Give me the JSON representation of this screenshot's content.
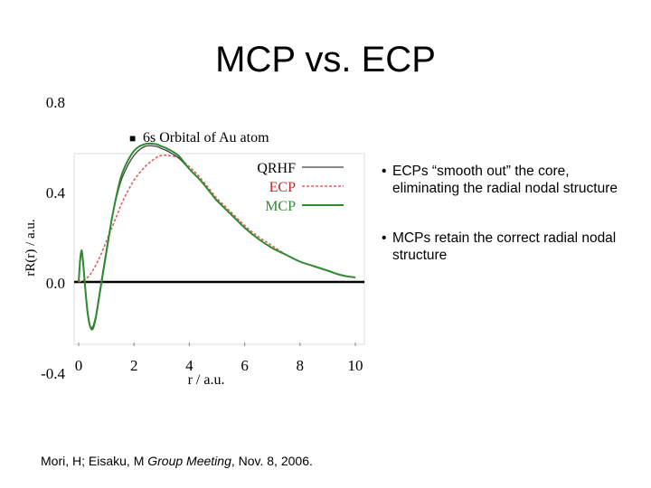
{
  "slide": {
    "title": "MCP vs. ECP"
  },
  "bullets": [
    {
      "mark": "•",
      "text": "ECPs “smooth out” the core, eliminating the radial nodal structure"
    },
    {
      "mark": "•",
      "text": "MCPs retain the correct radial nodal structure"
    }
  ],
  "footer": {
    "authors": "Mori, H; Eisaku, M ",
    "venue": "Group Meeting",
    "date": ", Nov. 8, 2006."
  },
  "chart_data": {
    "type": "line",
    "title": "6s Orbital of Au atom",
    "title_marker": "■",
    "xlabel": "r / a.u.",
    "ylabel": "rR(r) / a.u.",
    "xlim": [
      0,
      10
    ],
    "ylim": [
      -0.4,
      0.8
    ],
    "x_ticks": [
      "0",
      "2",
      "4",
      "6",
      "8",
      "10"
    ],
    "y_ticks": [
      "0.8",
      "0.4",
      "0.0",
      "-0.4"
    ],
    "colors": {
      "qrhf": "#404040",
      "ecp": "#e06060",
      "mcp": "#2e8b2e"
    },
    "series": [
      {
        "name": "QRHF",
        "style": "solid",
        "x": [
          0,
          0.05,
          0.1,
          0.15,
          0.2,
          0.3,
          0.4,
          0.5,
          0.6,
          0.7,
          0.8,
          1.0,
          1.2,
          1.4,
          1.6,
          2.0,
          2.4,
          2.8,
          3.0,
          3.2,
          3.6,
          4.0,
          4.4,
          4.8,
          5.0,
          5.5,
          6.0,
          6.5,
          7.0,
          7.5,
          8.0,
          8.5,
          9.0,
          9.5,
          10.0
        ],
        "y": [
          0.0,
          0.08,
          0.13,
          0.09,
          0.02,
          -0.12,
          -0.19,
          -0.2,
          -0.16,
          -0.09,
          -0.01,
          0.14,
          0.28,
          0.39,
          0.47,
          0.56,
          0.6,
          0.6,
          0.59,
          0.58,
          0.55,
          0.5,
          0.45,
          0.39,
          0.36,
          0.3,
          0.24,
          0.19,
          0.15,
          0.12,
          0.09,
          0.07,
          0.05,
          0.03,
          0.02
        ]
      },
      {
        "name": "ECP",
        "style": "dashed",
        "x": [
          0,
          0.2,
          0.4,
          0.6,
          0.8,
          1.0,
          1.2,
          1.4,
          1.6,
          2.0,
          2.4,
          2.8,
          3.0,
          3.2,
          3.6,
          4.0,
          4.4,
          4.8,
          5.0,
          5.5,
          6.0,
          6.5,
          7.0,
          7.5,
          8.0,
          8.5,
          9.0,
          9.5,
          10.0
        ],
        "y": [
          0.0,
          0.01,
          0.03,
          0.07,
          0.12,
          0.18,
          0.24,
          0.3,
          0.36,
          0.45,
          0.51,
          0.55,
          0.56,
          0.56,
          0.55,
          0.51,
          0.46,
          0.4,
          0.37,
          0.31,
          0.25,
          0.2,
          0.16,
          0.12,
          0.09,
          0.07,
          0.05,
          0.03,
          0.02
        ]
      },
      {
        "name": "MCP",
        "style": "solid",
        "x": [
          0,
          0.05,
          0.1,
          0.15,
          0.2,
          0.3,
          0.4,
          0.5,
          0.6,
          0.7,
          0.8,
          1.0,
          1.2,
          1.4,
          1.6,
          2.0,
          2.4,
          2.8,
          3.0,
          3.2,
          3.6,
          4.0,
          4.4,
          4.8,
          5.0,
          5.5,
          6.0,
          6.5,
          7.0,
          7.5,
          8.0,
          8.5,
          9.0,
          9.5,
          10.0
        ],
        "y": [
          0.0,
          0.09,
          0.14,
          0.1,
          0.03,
          -0.11,
          -0.19,
          -0.21,
          -0.17,
          -0.1,
          -0.02,
          0.13,
          0.28,
          0.4,
          0.49,
          0.58,
          0.61,
          0.61,
          0.6,
          0.59,
          0.56,
          0.5,
          0.45,
          0.39,
          0.36,
          0.3,
          0.24,
          0.19,
          0.15,
          0.12,
          0.09,
          0.07,
          0.05,
          0.03,
          0.02
        ]
      }
    ]
  }
}
